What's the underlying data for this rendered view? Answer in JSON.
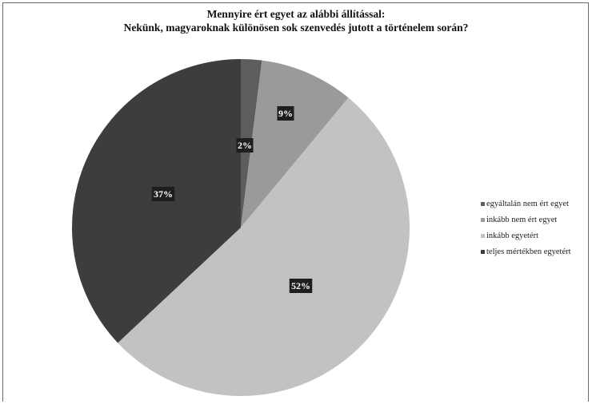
{
  "chart_data": {
    "type": "pie",
    "title_line1": "Mennyire ért egyet az alábbi állítással:",
    "title_line2": "Nekünk, magyaroknak különösen sok szenvedés jutott a történelem során?",
    "slices": [
      {
        "label": "egyáltalán nem ért egyet",
        "value": 2,
        "display": "2%",
        "color": "#5d5d5d"
      },
      {
        "label": "inkább nem ért egyet",
        "value": 9,
        "display": "9%",
        "color": "#9a9a9a"
      },
      {
        "label": "inkább egyetért",
        "value": 52,
        "display": "52%",
        "color": "#c2c2c4"
      },
      {
        "label": "teljes mértékben egyetért",
        "value": 37,
        "display": "37%",
        "color": "#3d3d3f"
      }
    ],
    "legend_position": "right"
  }
}
